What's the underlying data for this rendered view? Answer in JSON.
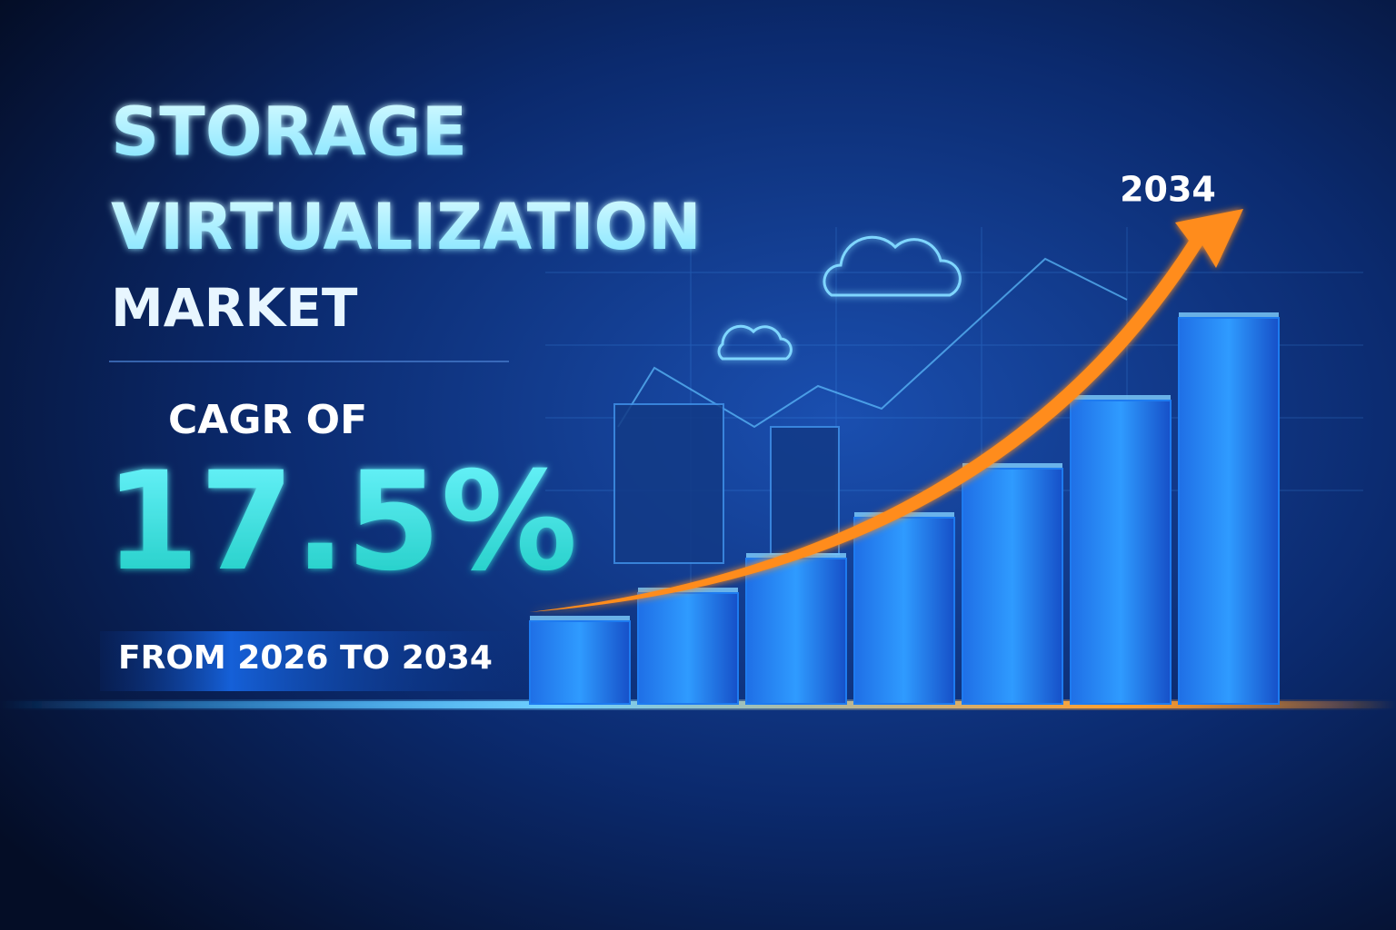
{
  "header": {
    "title_lines": [
      "STORAGE",
      "VIRTUALIZATION",
      "MARKET"
    ],
    "cagr_label": "CAGR OF",
    "cagr_value": "17.5%",
    "period": "FROM 2026 TO 2034"
  },
  "chart_data": {
    "type": "bar",
    "categories": [
      null,
      null,
      null,
      null,
      null,
      null,
      null
    ],
    "values": [
      91,
      122,
      160,
      205,
      259,
      334,
      425
    ],
    "color": "#1e7bf0",
    "ylim": [
      0,
      430
    ],
    "annotation": "2034",
    "trend_arrow_color": "#ff8c1a"
  }
}
